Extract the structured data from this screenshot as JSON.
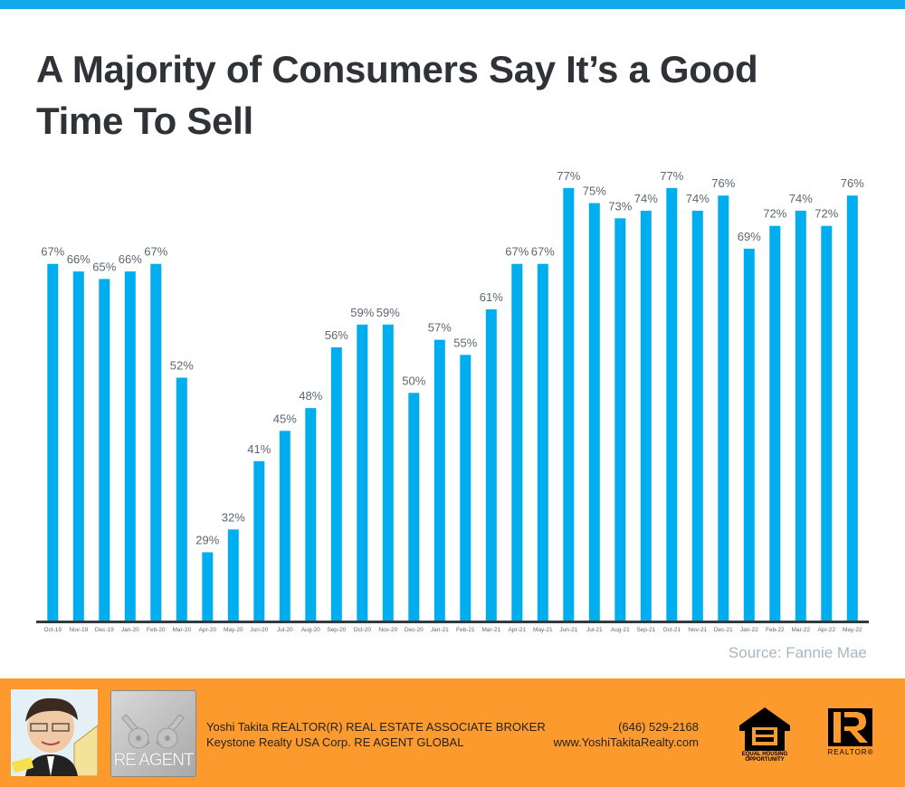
{
  "title": "A Majority of Consumers Say It’s a Good Time To Sell",
  "source": "Source: Fannie Mae",
  "colors": {
    "topbar": "#12aaee",
    "bar": "#00aeef",
    "footer": "#fd9a2d",
    "label": "#5b6670",
    "axis": "#333a40"
  },
  "chart_data": {
    "type": "bar",
    "title": "A Majority of Consumers Say It’s a Good Time To Sell",
    "xlabel": "",
    "ylabel": "",
    "ylim": [
      20,
      80
    ],
    "grid": false,
    "categories": [
      "Oct-19",
      "Nov-19",
      "Dec-19",
      "Jan-20",
      "Feb-20",
      "Mar-20",
      "Apr-20",
      "May-20",
      "Jun-20",
      "Jul-20",
      "Aug-20",
      "Sep-20",
      "Oct-20",
      "Nov-20",
      "Dec-20",
      "Jan-21",
      "Feb-21",
      "Mar-21",
      "Apr-21",
      "May-21",
      "Jun-21",
      "Jul-21",
      "Aug-21",
      "Sep-21",
      "Oct-21",
      "Nov-21",
      "Dec-21",
      "Jan-22",
      "Feb-22",
      "Mar-22",
      "Apr-22",
      "May-22"
    ],
    "values": [
      67,
      66,
      65,
      66,
      67,
      52,
      29,
      32,
      41,
      45,
      48,
      56,
      59,
      59,
      50,
      57,
      55,
      61,
      67,
      67,
      77,
      75,
      73,
      74,
      77,
      74,
      76,
      69,
      72,
      74,
      72,
      76
    ],
    "labels": [
      "67%",
      "66%",
      "65%",
      "66%",
      "67%",
      "52%",
      "29%",
      "32%",
      "41%",
      "45%",
      "48%",
      "56%",
      "59%",
      "59%",
      "50%",
      "57%",
      "55%",
      "61%",
      "67%",
      "67%",
      "77%",
      "75%",
      "73%",
      "74%",
      "77%",
      "74%",
      "76%",
      "69%",
      "72%",
      "74%",
      "72%",
      "76%"
    ]
  },
  "footer": {
    "agent_line": "Yoshi Takita REALTOR(R) REAL ESTATE ASSOCIATE BROKER",
    "company_line": "Keystone Realty USA Corp.  RE AGENT GLOBAL",
    "phone": "(646) 529-2168",
    "website": "www.YoshiTakitaRealty.com",
    "re_agent_logo": "RE AGENT",
    "eho_logo": "EQUAL HOUSING OPPORTUNITY",
    "realtor_logo": "REALTOR®"
  }
}
